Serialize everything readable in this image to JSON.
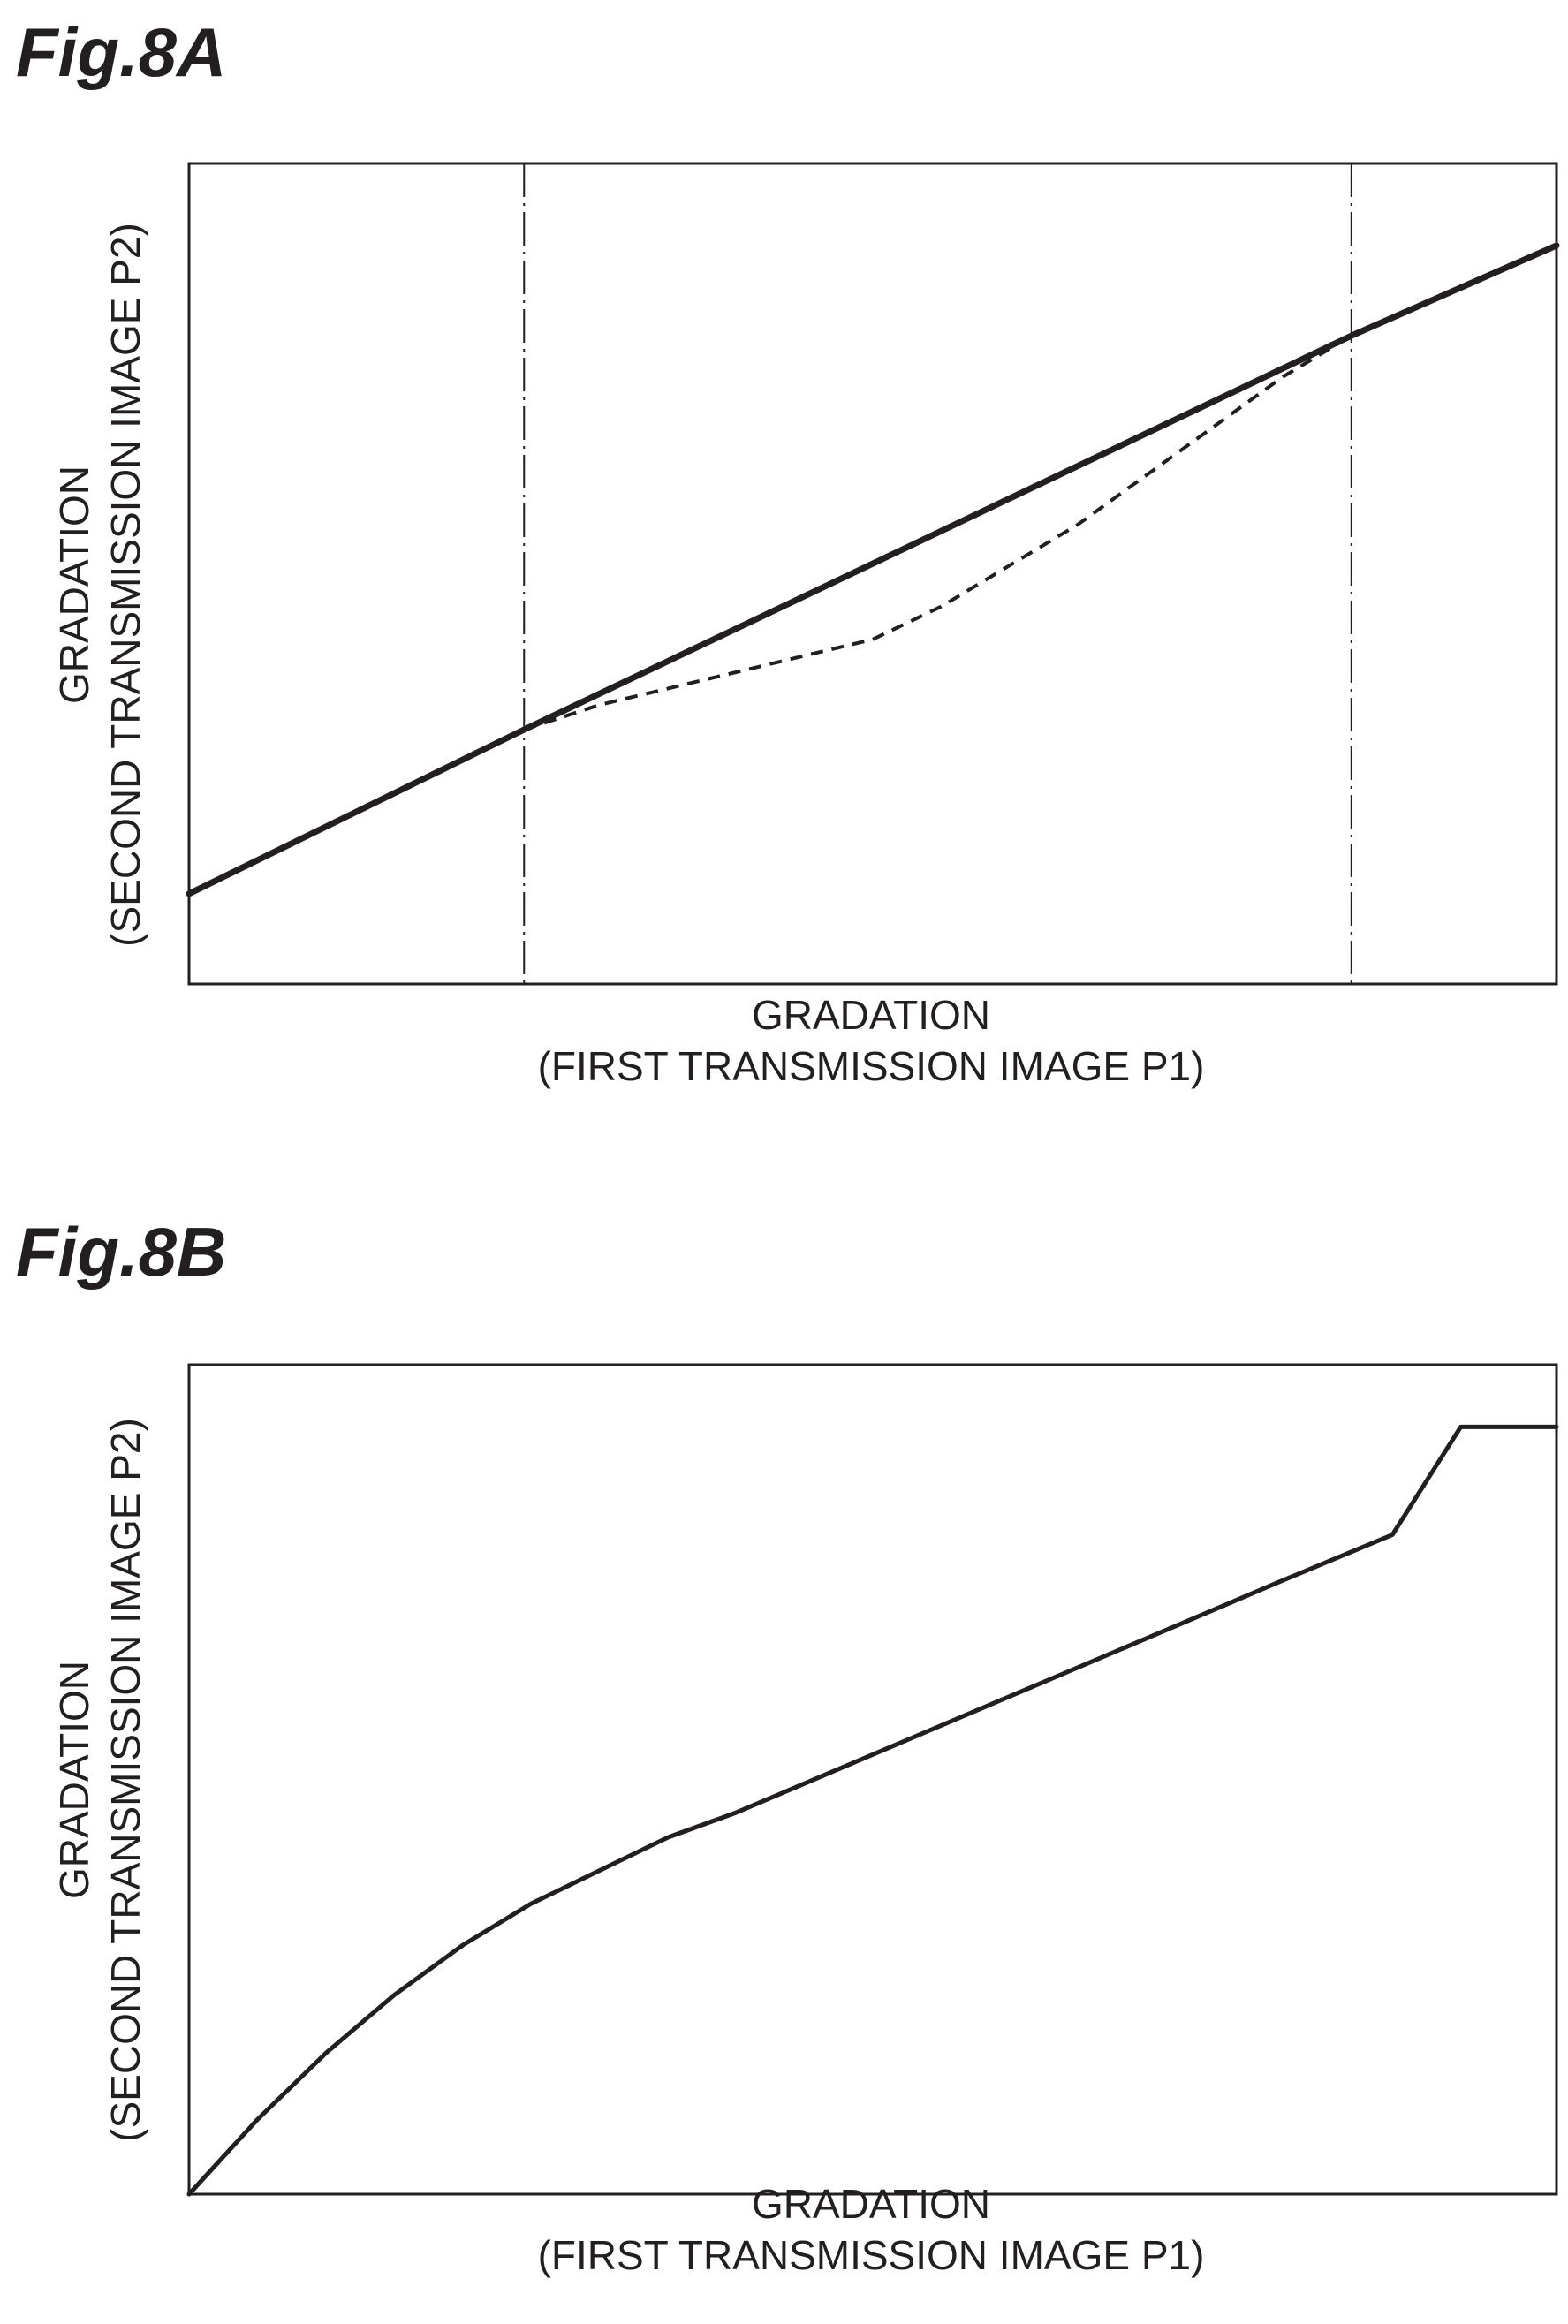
{
  "figures": [
    {
      "title": "Fig.8A"
    },
    {
      "title": "Fig.8B"
    }
  ],
  "chart_data": [
    {
      "type": "line",
      "title": "Fig.8A",
      "xlabel": [
        "GRADATION",
        "(FIRST TRANSMISSION IMAGE P1)"
      ],
      "ylabel": [
        "GRADATION",
        "(SECOND TRANSMISSION IMAGE P2)"
      ],
      "xlim": [
        0,
        100
      ],
      "ylim": [
        0,
        100
      ],
      "grid": false,
      "vlines": [
        24.5,
        85
      ],
      "series": [
        {
          "style": "solid",
          "x": [
            0,
            24.5,
            85,
            100
          ],
          "y": [
            11,
            31,
            79,
            90
          ]
        },
        {
          "style": "dashed",
          "x": [
            24.5,
            30,
            40,
            50,
            55,
            60,
            65,
            70,
            75,
            80,
            85
          ],
          "y": [
            31,
            34,
            38,
            42,
            46,
            51,
            56,
            62,
            68,
            74,
            79
          ]
        }
      ]
    },
    {
      "type": "line",
      "title": "Fig.8B",
      "xlabel": [
        "GRADATION",
        "(FIRST TRANSMISSION IMAGE P1)"
      ],
      "ylabel": [
        "GRADATION",
        "(SECOND TRANSMISSION IMAGE P2)"
      ],
      "xlim": [
        0,
        100
      ],
      "ylim": [
        0,
        100
      ],
      "grid": false,
      "vlines": [],
      "series": [
        {
          "style": "solid",
          "x": [
            0,
            5,
            10,
            15,
            20,
            25,
            30,
            35,
            40,
            50,
            60,
            70,
            80,
            88,
            93,
            100
          ],
          "y": [
            0,
            9,
            17,
            24,
            30,
            35,
            39,
            43,
            46,
            53,
            60,
            67,
            74,
            79.5,
            92.5,
            92.5
          ]
        }
      ]
    }
  ]
}
